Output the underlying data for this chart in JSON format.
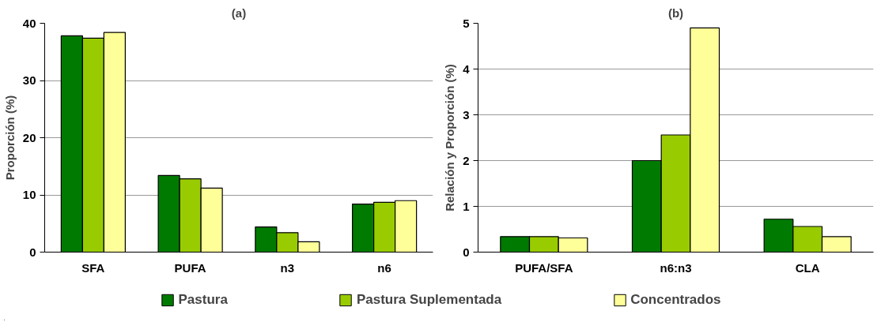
{
  "chart_data": [
    {
      "type": "bar",
      "title": "(a)",
      "ylabel": "Proporción (%)",
      "categories": [
        "SFA",
        "PUFA",
        "n3",
        "n6"
      ],
      "series": [
        {
          "name": "Pastura",
          "color": "#007a00",
          "values": [
            37.8,
            13.4,
            4.4,
            8.4
          ]
        },
        {
          "name": "Pastura Suplementada",
          "color": "#99cc00",
          "values": [
            37.4,
            12.8,
            3.4,
            8.7
          ]
        },
        {
          "name": "Concentrados",
          "color": "#ffff99",
          "values": [
            38.4,
            11.2,
            1.8,
            9.0
          ]
        }
      ],
      "ylim": [
        0,
        40
      ],
      "yticks": [
        0,
        10,
        20,
        30,
        40
      ],
      "grid": "y",
      "legend": "bottom"
    },
    {
      "type": "bar",
      "title": "(b)",
      "ylabel": "Relación y Proporción (%)",
      "categories": [
        "PUFA/SFA",
        "n6:n3",
        "CLA"
      ],
      "series": [
        {
          "color": "#007a00",
          "values": [
            0.34,
            2.0,
            0.72
          ]
        },
        {
          "color": "#99cc00",
          "values": [
            0.34,
            2.56,
            0.56
          ]
        },
        {
          "color": "#ffff99",
          "values": [
            0.31,
            4.9,
            0.34
          ]
        }
      ],
      "ylim": [
        0,
        5
      ],
      "yticks": [
        0,
        1,
        2,
        3,
        4,
        5
      ],
      "grid": "y"
    }
  ]
}
